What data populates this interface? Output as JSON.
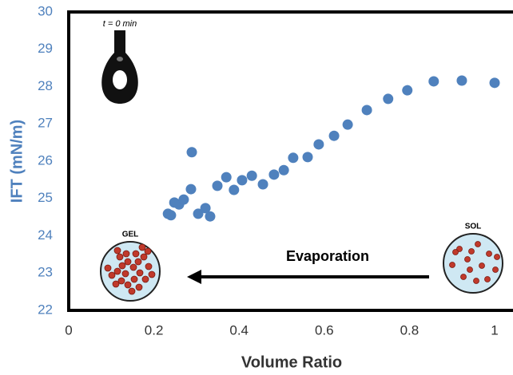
{
  "chart_data": {
    "type": "scatter",
    "x_label": "Volume Ratio",
    "y_label": "IFT (mN/m)",
    "annotations": {
      "time": "t = 0 min",
      "gel": "GEL",
      "sol": "SOL",
      "arrow": "Evaporation"
    },
    "color": "#4f81bd",
    "x": [
      0.233,
      0.24,
      0.248,
      0.259,
      0.27,
      0.287,
      0.289,
      0.304,
      0.321,
      0.332,
      0.349,
      0.37,
      0.388,
      0.407,
      0.43,
      0.456,
      0.482,
      0.505,
      0.527,
      0.561,
      0.587,
      0.623,
      0.655,
      0.7,
      0.75,
      0.795,
      0.857,
      0.923,
      1.0
    ],
    "values": [
      24.59,
      24.55,
      24.89,
      24.84,
      24.97,
      25.25,
      26.24,
      24.59,
      24.74,
      24.52,
      25.34,
      25.57,
      25.23,
      25.49,
      25.61,
      25.38,
      25.64,
      25.76,
      26.09,
      26.11,
      26.45,
      26.68,
      26.98,
      27.37,
      27.67,
      27.9,
      28.14,
      28.16,
      28.1
    ],
    "xlim": [
      0,
      1.04
    ],
    "ylim": [
      22,
      30
    ],
    "xticks": [
      0,
      0.2,
      0.4,
      0.6,
      0.8,
      1
    ],
    "yticks": [
      22,
      23,
      24,
      25,
      26,
      27,
      28,
      29,
      30
    ]
  }
}
